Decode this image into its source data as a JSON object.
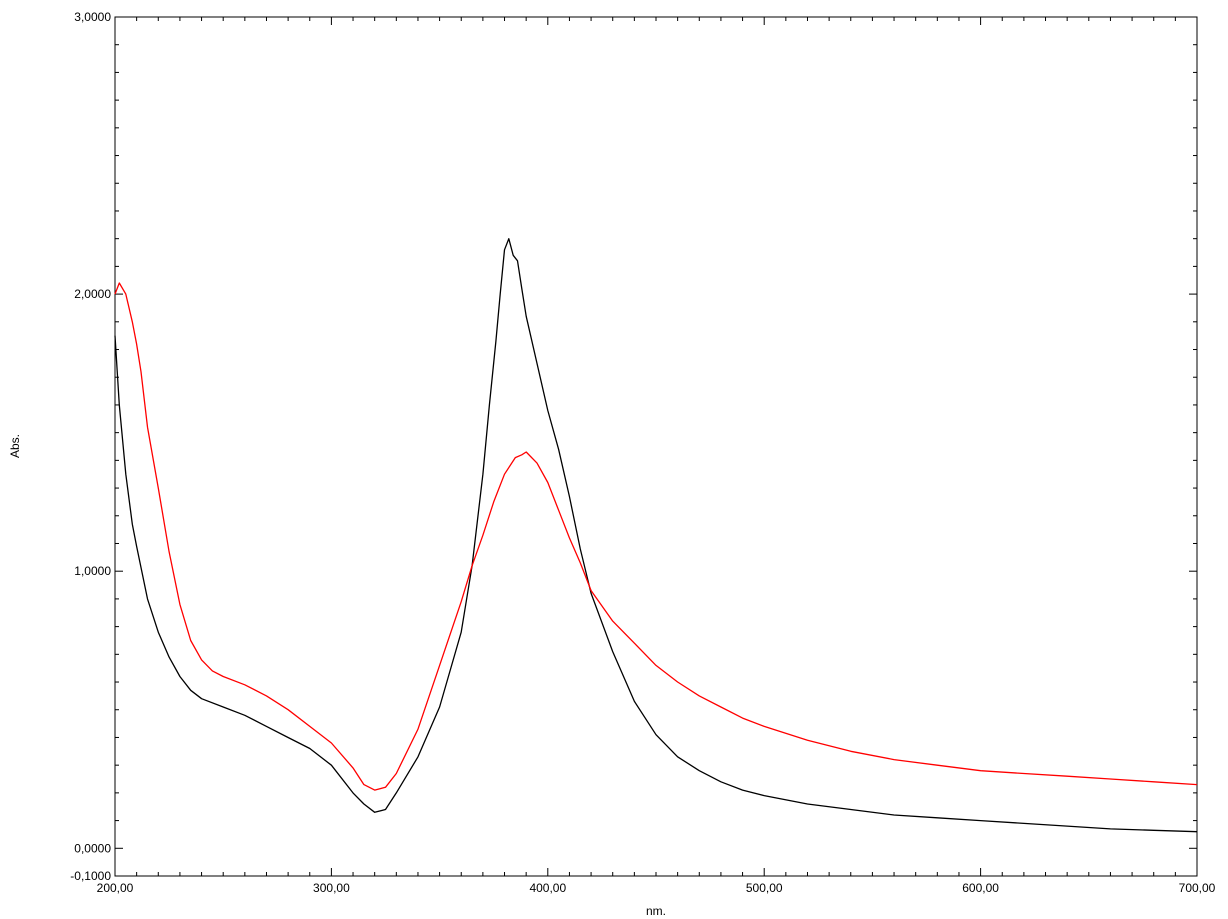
{
  "chart_data": {
    "type": "line",
    "xlabel": "nm.",
    "ylabel": "Abs.",
    "xlim": [
      200,
      700
    ],
    "ylim": [
      -0.1,
      3.0
    ],
    "x_ticks": [
      200,
      300,
      400,
      500,
      600,
      700
    ],
    "x_tick_labels": [
      "200,00",
      "300,00",
      "400,00",
      "500,00",
      "600,00",
      "700,00"
    ],
    "y_ticks": [
      -0.1,
      0.0,
      1.0,
      2.0,
      3.0
    ],
    "y_tick_labels": [
      "-0,1000",
      "0,0000",
      "1,0000",
      "2,0000",
      "3,0000"
    ],
    "grid": false,
    "series": [
      {
        "color": "#000000",
        "x": [
          200,
          202,
          205,
          208,
          210,
          215,
          220,
          225,
          230,
          235,
          240,
          250,
          260,
          270,
          280,
          290,
          300,
          310,
          315,
          320,
          325,
          330,
          340,
          350,
          360,
          365,
          370,
          373,
          376,
          378,
          380,
          382,
          384,
          386,
          388,
          390,
          395,
          400,
          405,
          410,
          415,
          420,
          430,
          440,
          450,
          460,
          470,
          480,
          490,
          500,
          520,
          540,
          560,
          580,
          600,
          620,
          640,
          660,
          680,
          700
        ],
        "y": [
          1.85,
          1.6,
          1.35,
          1.17,
          1.09,
          0.9,
          0.78,
          0.69,
          0.62,
          0.57,
          0.54,
          0.51,
          0.48,
          0.44,
          0.4,
          0.36,
          0.3,
          0.2,
          0.16,
          0.13,
          0.14,
          0.2,
          0.33,
          0.51,
          0.78,
          1.02,
          1.35,
          1.6,
          1.83,
          2.0,
          2.16,
          2.2,
          2.14,
          2.12,
          2.02,
          1.92,
          1.75,
          1.58,
          1.44,
          1.27,
          1.08,
          0.92,
          0.71,
          0.53,
          0.41,
          0.33,
          0.28,
          0.24,
          0.21,
          0.19,
          0.16,
          0.14,
          0.12,
          0.11,
          0.1,
          0.09,
          0.08,
          0.07,
          0.065,
          0.06
        ]
      },
      {
        "color": "#ff0000",
        "x": [
          200,
          202,
          205,
          208,
          210,
          212,
          215,
          220,
          225,
          230,
          235,
          240,
          245,
          250,
          260,
          270,
          280,
          290,
          300,
          310,
          315,
          320,
          325,
          330,
          340,
          350,
          360,
          365,
          370,
          375,
          380,
          385,
          388,
          390,
          395,
          400,
          405,
          410,
          415,
          420,
          430,
          440,
          450,
          460,
          470,
          480,
          490,
          500,
          520,
          540,
          560,
          580,
          600,
          620,
          640,
          660,
          680,
          700
        ],
        "y": [
          2.0,
          2.04,
          2.0,
          1.9,
          1.82,
          1.72,
          1.52,
          1.3,
          1.07,
          0.88,
          0.75,
          0.68,
          0.64,
          0.62,
          0.59,
          0.55,
          0.5,
          0.44,
          0.38,
          0.29,
          0.23,
          0.21,
          0.22,
          0.27,
          0.43,
          0.66,
          0.89,
          1.02,
          1.13,
          1.25,
          1.35,
          1.41,
          1.42,
          1.43,
          1.39,
          1.32,
          1.22,
          1.12,
          1.03,
          0.93,
          0.82,
          0.74,
          0.66,
          0.6,
          0.55,
          0.51,
          0.47,
          0.44,
          0.39,
          0.35,
          0.32,
          0.3,
          0.28,
          0.27,
          0.26,
          0.25,
          0.24,
          0.23
        ]
      }
    ]
  }
}
